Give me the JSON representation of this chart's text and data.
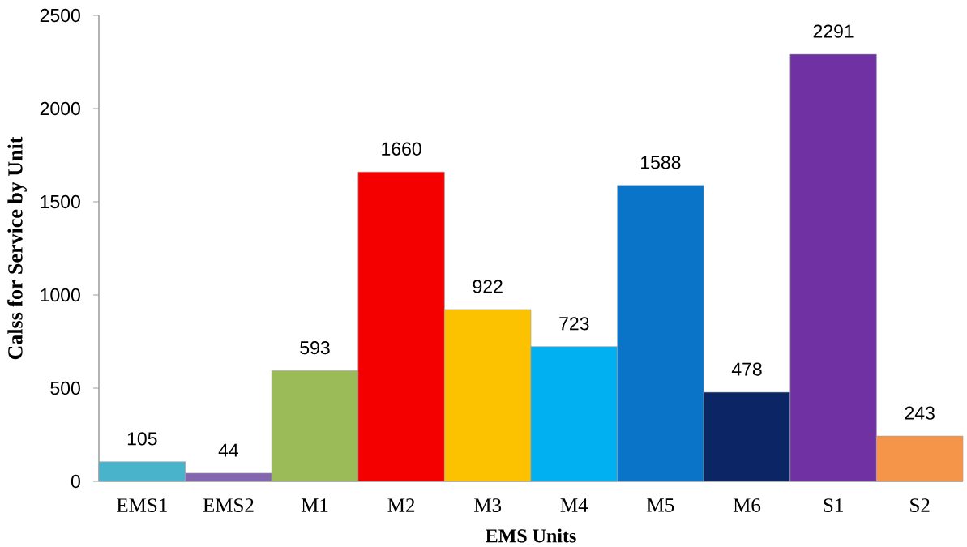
{
  "chart_data": {
    "type": "bar",
    "xlabel": "EMS Units",
    "ylabel": "Calss for Service by Unit",
    "categories": [
      "EMS1",
      "EMS2",
      "M1",
      "M2",
      "M3",
      "M4",
      "M5",
      "M6",
      "S1",
      "S2"
    ],
    "values": [
      105,
      44,
      593,
      1660,
      922,
      723,
      1588,
      478,
      2291,
      243
    ],
    "colors": [
      "#4ab3cc",
      "#8466b0",
      "#9bbb59",
      "#f50000",
      "#fcc200",
      "#00b0f0",
      "#0a74c8",
      "#0c2565",
      "#7031a2",
      "#f5954a"
    ],
    "ylim": [
      0,
      2500
    ],
    "yticks": [
      0,
      500,
      1000,
      1500,
      2000,
      2500
    ],
    "data_labels": true
  }
}
